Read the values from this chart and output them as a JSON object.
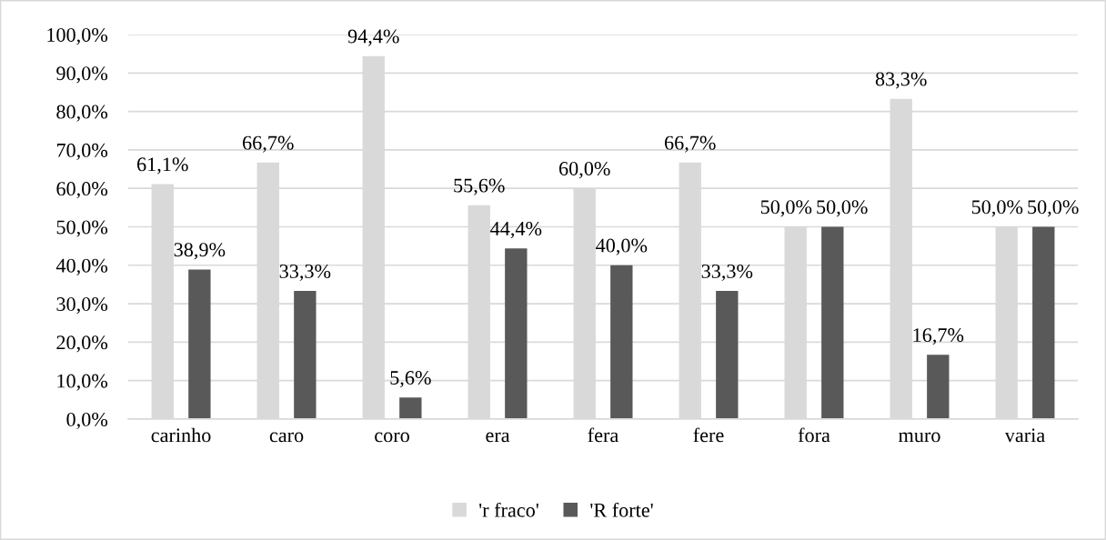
{
  "chart_data": {
    "type": "bar",
    "categories": [
      "carinho",
      "caro",
      "coro",
      "era",
      "fera",
      "fere",
      "fora",
      "muro",
      "varia"
    ],
    "series": [
      {
        "name": "'r fraco'",
        "color": "#d9d9d9",
        "values": [
          61.1,
          66.7,
          94.4,
          55.6,
          60.0,
          66.7,
          50.0,
          83.3,
          50.0
        ],
        "value_labels": [
          "61,1%",
          "66,7%",
          "94,4%",
          "55,6%",
          "60,0%",
          "66,7%",
          "50,0%",
          "83,3%",
          "50,0%"
        ]
      },
      {
        "name": "'R forte'",
        "color": "#595959",
        "values": [
          38.9,
          33.3,
          5.6,
          44.4,
          40.0,
          33.3,
          50.0,
          16.7,
          50.0
        ],
        "value_labels": [
          "38,9%",
          "33,3%",
          "5,6%",
          "44,4%",
          "40,0%",
          "33,3%",
          "50,0%",
          "16,7%",
          "50,0%"
        ]
      }
    ],
    "ylim": [
      0,
      100
    ],
    "yticks": [
      {
        "value": 0,
        "label": "0,0%"
      },
      {
        "value": 10,
        "label": "10,0%"
      },
      {
        "value": 20,
        "label": "20,0%"
      },
      {
        "value": 30,
        "label": "30,0%"
      },
      {
        "value": 40,
        "label": "40,0%"
      },
      {
        "value": 50,
        "label": "50,0%"
      },
      {
        "value": 60,
        "label": "60,0%"
      },
      {
        "value": 70,
        "label": "70,0%"
      },
      {
        "value": 80,
        "label": "80,0%"
      },
      {
        "value": 90,
        "label": "90,0%"
      },
      {
        "value": 100,
        "label": "100,0%"
      }
    ],
    "grid": "y",
    "legend": "bottom"
  }
}
